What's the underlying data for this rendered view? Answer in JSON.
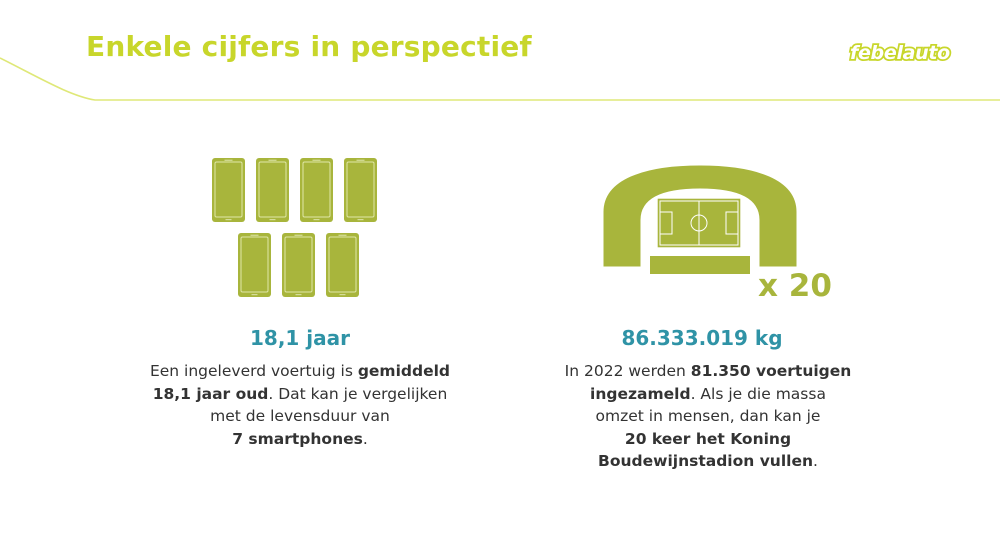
{
  "slide": {
    "title": "Enkele cijfers in perspectief",
    "logo": "febelauto"
  },
  "colors": {
    "accent_green": "#c8d62b",
    "icon_olive": "#a8b53c",
    "value_teal": "#2f93a6",
    "body_text": "#333333"
  },
  "left_block": {
    "icon": "smartphones-icon",
    "value": "18,1 jaar",
    "lines": [
      [
        {
          "t": "Een ingeleverd voertuig is ",
          "b": false
        },
        {
          "t": "gemiddeld",
          "b": true
        }
      ],
      [
        {
          "t": "18,1 jaar oud",
          "b": true
        },
        {
          "t": ". Dat kan je vergelijken",
          "b": false
        }
      ],
      [
        {
          "t": "met de levensduur van",
          "b": false
        }
      ],
      [
        {
          "t": "7 smartphones",
          "b": true
        },
        {
          "t": ".",
          "b": false
        }
      ]
    ]
  },
  "right_block": {
    "icon": "stadium-icon",
    "multiplier": "x 20",
    "value": "86.333.019 kg",
    "lines": [
      [
        {
          "t": "In 2022 werden ",
          "b": false
        },
        {
          "t": "81.350 voertuigen",
          "b": true
        }
      ],
      [
        {
          "t": "ingezameld",
          "b": true
        },
        {
          "t": ". Als je die massa",
          "b": false
        }
      ],
      [
        {
          "t": "omzet in mensen, dan kan je",
          "b": false
        }
      ],
      [
        {
          "t": "20 keer het Koning",
          "b": true
        }
      ],
      [
        {
          "t": "Boudewijnstadion vullen",
          "b": true
        },
        {
          "t": ".",
          "b": false
        }
      ]
    ]
  }
}
